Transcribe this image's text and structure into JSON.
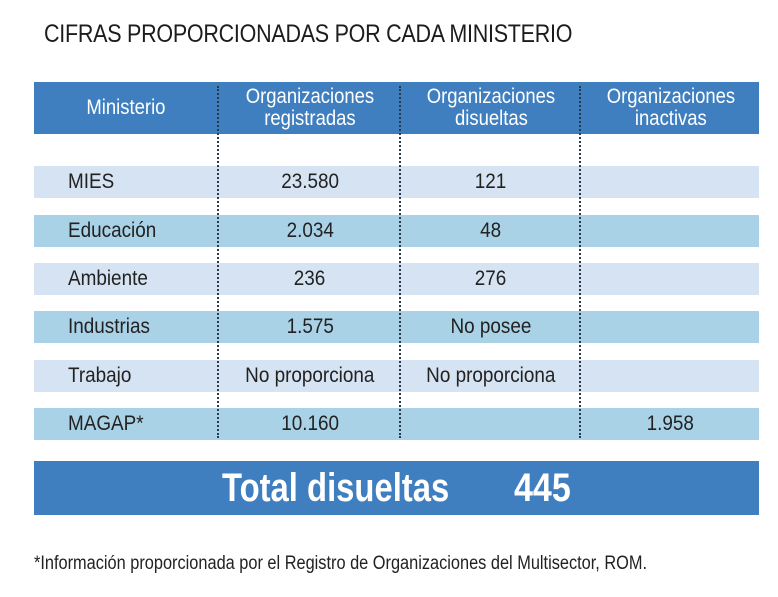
{
  "title": "CIFRAS PROPORCIONADAS POR CADA MINISTERIO",
  "table": {
    "headers": [
      [
        "Ministerio"
      ],
      [
        "Organizaciones",
        "registradas"
      ],
      [
        "Organizaciones",
        "disueltas"
      ],
      [
        "Organizaciones",
        "inactivas"
      ]
    ],
    "rows": [
      {
        "ministerio": "MIES",
        "registradas": "23.580",
        "disueltas": "121",
        "inactivas": ""
      },
      {
        "ministerio": "Educación",
        "registradas": "2.034",
        "disueltas": "48",
        "inactivas": ""
      },
      {
        "ministerio": "Ambiente",
        "registradas": "236",
        "disueltas": "276",
        "inactivas": ""
      },
      {
        "ministerio": "Industrias",
        "registradas": "1.575",
        "disueltas": "No posee",
        "inactivas": ""
      },
      {
        "ministerio": "Trabajo",
        "registradas": "No proporciona",
        "disueltas": "No proporciona",
        "inactivas": ""
      },
      {
        "ministerio": "MAGAP*",
        "registradas": "10.160",
        "disueltas": "",
        "inactivas": "1.958"
      }
    ]
  },
  "total": {
    "label": "Total disueltas",
    "value": "445"
  },
  "footnote": "*Información proporcionada por el Registro de Organizaciones del Multisector, ROM.",
  "colors": {
    "header_blue": "#3f7fc0",
    "row_light": "#d5e3f2",
    "row_mid": "#a9d2e6"
  }
}
